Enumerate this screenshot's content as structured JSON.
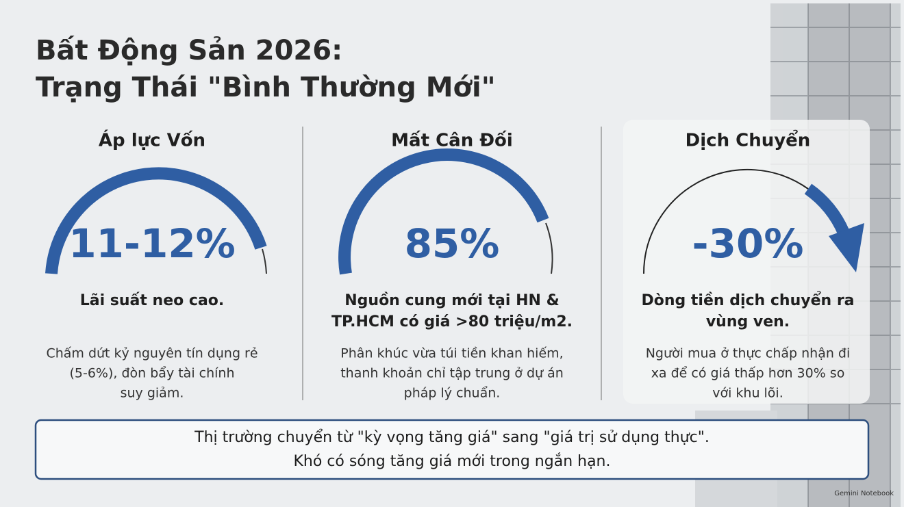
{
  "header": {
    "title_lines": [
      "Bất Động Sản 2026:",
      "Trạng Thái \"Bình Thường Mới\""
    ]
  },
  "columns": [
    {
      "heading": "Áp lực Vốn",
      "value": "11-12%",
      "subtitle_lines": [
        "Lãi suất neo cao."
      ],
      "description_lines": [
        "Chấm dứt kỷ nguyên tín dụng rẻ",
        "(5-6%), đòn bẩy tài chính",
        "suy giảm."
      ]
    },
    {
      "heading": "Mất Cân Đối",
      "value": "85%",
      "subtitle_lines": [
        "Nguồn cung mới tại HN &",
        "TP.HCM có giá >80 triệu/m2."
      ],
      "description_lines": [
        "Phân khúc vừa túi tiền khan hiếm,",
        "thanh khoản chỉ tập trung ở dự án",
        "pháp lý chuẩn."
      ]
    },
    {
      "heading": "Dịch Chuyển",
      "value": "-30%",
      "subtitle_lines": [
        "Dòng tiền dịch chuyển ra",
        "vùng ven."
      ],
      "description_lines": [
        "Người mua ở thực chấp nhận đi",
        "xa để có giá thấp hơn 30% so",
        "với khu lõi."
      ]
    }
  ],
  "banner": {
    "lines": [
      "Thị trường chuyển từ \"kỳ vọng tăng giá\" sang \"giá trị sử dụng thực\".",
      "Khó có sóng tăng giá mới trong ngắn hạn."
    ]
  },
  "watermark": "Gemini Notebook"
}
